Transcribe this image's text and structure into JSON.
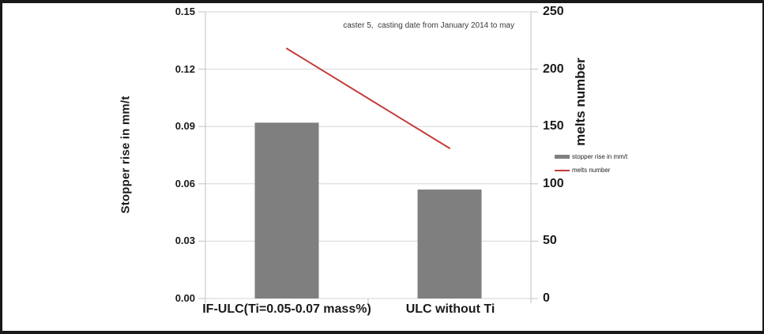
{
  "frame": {
    "background": "#ffffff",
    "border_color": "#191919"
  },
  "annotation": {
    "text": "caster 5,  casting date from January 2014 to may"
  },
  "axes": {
    "left": {
      "title": "Stopper rise in mm/t",
      "tick_labels": [
        "0.15",
        "0.12",
        "0.09",
        "0.06",
        "0.03",
        "0.00"
      ]
    },
    "right": {
      "title": "melts number",
      "tick_labels": [
        "250",
        "200",
        "150",
        "100",
        "50",
        "0"
      ]
    }
  },
  "legend": {
    "items": [
      {
        "label": "stopper rise in mm/t",
        "marker": "bar-swatch",
        "color": "#7f7f7f"
      },
      {
        "label": "melts number",
        "marker": "line-swatch",
        "color": "#c33a38"
      }
    ]
  },
  "chart_data": {
    "type": "bar",
    "categories": [
      "IF-ULC(Ti=0.05-0.07 mass%)",
      "ULC without Ti"
    ],
    "series": [
      {
        "name": "stopper rise in mm/t",
        "type": "bar",
        "axis": "left",
        "values": [
          0.092,
          0.057
        ],
        "color": "#7f7f7f"
      },
      {
        "name": "melts number",
        "type": "line",
        "axis": "right",
        "values": [
          218,
          131
        ],
        "color": "#c33a38"
      }
    ],
    "annotation": "caster 5,  casting date from January 2014 to may",
    "left_axis": {
      "label": "Stopper rise in mm/t",
      "ylim": [
        0,
        0.15
      ],
      "ticks": [
        0,
        0.03,
        0.06,
        0.09,
        0.12,
        0.15
      ]
    },
    "right_axis": {
      "label": "melts number",
      "ylim": [
        0,
        250
      ],
      "ticks": [
        0,
        50,
        100,
        150,
        200,
        250
      ]
    },
    "grid": true,
    "legend_position": "right-middle"
  },
  "colors": {
    "bar": "#7f7f7f",
    "line": "#c33a38",
    "grid": "#d6d6d6",
    "axis": "#c2c2c2",
    "text": "#1a1a1a"
  }
}
